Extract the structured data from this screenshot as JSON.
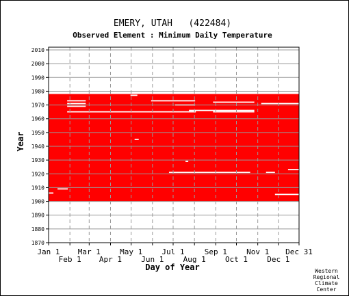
{
  "chart_data": {
    "type": "heatmap",
    "title": "EMERY, UTAH   (422484)",
    "subtitle": "Observed Element : Minimum Daily Temperature",
    "xlabel": "Day of Year",
    "ylabel": "Year",
    "xlim": [
      1,
      365
    ],
    "ylim": [
      1870,
      2012
    ],
    "x_ticks_upper": [
      {
        "label": "Jan 1",
        "day": 1
      },
      {
        "label": "Mar 1",
        "day": 60
      },
      {
        "label": "May 1",
        "day": 121
      },
      {
        "label": "Jul 1",
        "day": 182
      },
      {
        "label": "Sep 1",
        "day": 244
      },
      {
        "label": "Nov 1",
        "day": 305
      },
      {
        "label": "Dec 31",
        "day": 365
      }
    ],
    "x_ticks_lower": [
      {
        "label": "Feb 1",
        "day": 32
      },
      {
        "label": "Apr 1",
        "day": 91
      },
      {
        "label": "Jun 1",
        "day": 152
      },
      {
        "label": "Aug 1",
        "day": 213
      },
      {
        "label": "Oct 1",
        "day": 274
      },
      {
        "label": "Dec 1",
        "day": 335
      }
    ],
    "y_ticks": [
      {
        "label": "1870",
        "value": 1870
      },
      {
        "label": "1880",
        "value": 1880
      },
      {
        "label": "1890",
        "value": 1890
      },
      {
        "label": "1900",
        "value": 1900
      },
      {
        "label": "1910",
        "value": 1910
      },
      {
        "label": "1920",
        "value": 1920
      },
      {
        "label": "1930",
        "value": 1930
      },
      {
        "label": "1940",
        "value": 1940
      },
      {
        "label": "1950",
        "value": 1950
      },
      {
        "label": "1960",
        "value": 1960
      },
      {
        "label": "1970",
        "value": 1970
      },
      {
        "label": "1980",
        "value": 1980
      },
      {
        "label": "1990",
        "value": 1990
      },
      {
        "label": "2000",
        "value": 2000
      },
      {
        "label": "2010",
        "value": 2010
      }
    ],
    "observed_period": {
      "start_year": 1900,
      "end_year": 1978
    },
    "missing_segments": [
      {
        "year": 1906,
        "start_day": 1,
        "end_day": 8
      },
      {
        "year": 1909,
        "start_day": 14,
        "end_day": 29
      },
      {
        "year": 1905,
        "start_day": 330,
        "end_day": 365
      },
      {
        "year": 1921,
        "start_day": 176,
        "end_day": 294
      },
      {
        "year": 1921,
        "start_day": 317,
        "end_day": 330
      },
      {
        "year": 1923,
        "start_day": 349,
        "end_day": 365
      },
      {
        "year": 1929,
        "start_day": 200,
        "end_day": 204
      },
      {
        "year": 1945,
        "start_day": 126,
        "end_day": 132
      },
      {
        "year": 1965,
        "start_day": 28,
        "end_day": 215
      },
      {
        "year": 1965,
        "start_day": 240,
        "end_day": 300
      },
      {
        "year": 1966,
        "start_day": 205,
        "end_day": 300
      },
      {
        "year": 1969,
        "start_day": 28,
        "end_day": 55
      },
      {
        "year": 1970,
        "start_day": 185,
        "end_day": 214
      },
      {
        "year": 1971,
        "start_day": 28,
        "end_day": 55
      },
      {
        "year": 1971,
        "start_day": 310,
        "end_day": 365
      },
      {
        "year": 1972,
        "start_day": 240,
        "end_day": 300
      },
      {
        "year": 1973,
        "start_day": 28,
        "end_day": 55
      },
      {
        "year": 1973,
        "start_day": 150,
        "end_day": 214
      },
      {
        "year": 1977,
        "start_day": 120,
        "end_day": 130
      }
    ],
    "colors": {
      "data": "#ff0000",
      "missing": "#ffffff",
      "plot_background": "#ffffff",
      "grid": "#999999",
      "frame": "#000000"
    },
    "grid": true
  },
  "credit": [
    "Western",
    "Regional",
    "Climate",
    "Center"
  ]
}
